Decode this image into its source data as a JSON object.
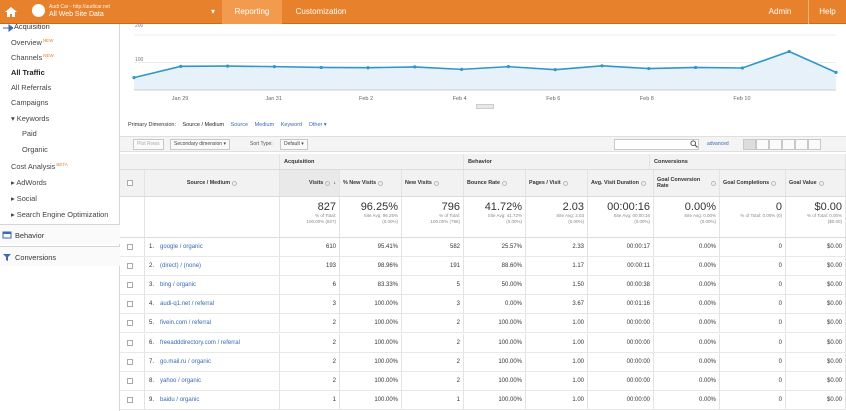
{
  "topbar": {
    "site_line1": "Audi Car - http://audicar.net",
    "site_line2": "All Web Site Data",
    "tab_reporting": "Reporting",
    "tab_customization": "Customization",
    "admin": "Admin",
    "help": "Help"
  },
  "sidebar": {
    "acquisition": "Acquisition",
    "overview": "Overview",
    "overview_badge": "NEW",
    "channels": "Channels",
    "channels_badge": "NEW",
    "all_traffic": "All Traffic",
    "all_referrals": "All Referrals",
    "campaigns": "Campaigns",
    "keywords": "▾ Keywords",
    "paid": "Paid",
    "organic": "Organic",
    "cost_analysis": "Cost Analysis",
    "cost_badge": "BETA",
    "adwords": "▸ AdWords",
    "social": "▸ Social",
    "seo": "▸ Search Engine Optimization",
    "behavior": "Behavior",
    "conversions": "Conversions"
  },
  "chart_data": {
    "type": "area",
    "y_ticks": [
      "200",
      "100"
    ],
    "ylim": [
      0,
      240
    ],
    "x_tick_labels": [
      "Jan 29",
      "Jan 31",
      "Feb 2",
      "Feb 4",
      "Feb 6",
      "Feb 8",
      "Feb 10"
    ],
    "x": [
      "Jan 28",
      "Jan 29",
      "Jan 30",
      "Jan 31",
      "Feb 1",
      "Feb 2",
      "Feb 3",
      "Feb 4",
      "Feb 5",
      "Feb 6",
      "Feb 7",
      "Feb 8",
      "Feb 9",
      "Feb 10",
      "Feb 11",
      "Feb 12"
    ],
    "series": [
      {
        "values": [
          45,
          86,
          87,
          85,
          82,
          81,
          84,
          75,
          85,
          74,
          88,
          78,
          82,
          80,
          140,
          64
        ]
      }
    ],
    "colors": {
      "line": "#3296c8",
      "fill": "#e6f1fa"
    }
  },
  "dimensions": {
    "label": "Primary Dimension:",
    "selected": "Source / Medium",
    "options": [
      "Source",
      "Medium",
      "Keyword"
    ],
    "other": "Other ▾"
  },
  "toolbar": {
    "plot_rows": "Plot Rows",
    "secondary": "Secondary dimension ▾",
    "sort_label": "Sort Type:",
    "sort_value": "Default ▾",
    "advanced": "advanced"
  },
  "table": {
    "groups": {
      "acquisition": "Acquisition",
      "behavior": "Behavior",
      "conversions": "Conversions"
    },
    "source_header": "Source / Medium",
    "columns": [
      "Visits",
      "% New Visits",
      "New Visits",
      "Bounce Rate",
      "Pages / Visit",
      "Avg. Visit Duration",
      "Goal Conversion Rate",
      "Goal Completions",
      "Goal Value"
    ],
    "totals": [
      {
        "big": "827",
        "sub": "% of Total:\n100.00% (827)"
      },
      {
        "big": "96.25%",
        "sub": "Site Avg: 96.25%\n(0.00%)"
      },
      {
        "big": "796",
        "sub": "% of Total:\n100.00% (796)"
      },
      {
        "big": "41.72%",
        "sub": "Site Avg: 41.72%\n(0.00%)"
      },
      {
        "big": "2.03",
        "sub": "Site Avg: 2.03\n(0.00%)"
      },
      {
        "big": "00:00:16",
        "sub": "Site Avg: 00:00:16\n(0.00%)"
      },
      {
        "big": "0.00%",
        "sub": "Site Avg: 0.00%\n(0.00%)"
      },
      {
        "big": "0",
        "sub": "% of Total: 0.00% (0)"
      },
      {
        "big": "$0.00",
        "sub": "% of Total: 0.00%\n($0.00)"
      }
    ],
    "rows": [
      {
        "idx": "1.",
        "source": "google / organic",
        "v": [
          "610",
          "95.41%",
          "582",
          "25.57%",
          "2.33",
          "00:00:17",
          "0.00%",
          "0",
          "$0.00"
        ]
      },
      {
        "idx": "2.",
        "source": "(direct) / (none)",
        "v": [
          "193",
          "98.96%",
          "191",
          "88.60%",
          "1.17",
          "00:00:11",
          "0.00%",
          "0",
          "$0.00"
        ]
      },
      {
        "idx": "3.",
        "source": "bing / organic",
        "v": [
          "6",
          "83.33%",
          "5",
          "50.00%",
          "1.50",
          "00:00:38",
          "0.00%",
          "0",
          "$0.00"
        ]
      },
      {
        "idx": "4.",
        "source": "audi-q1.net / referral",
        "v": [
          "3",
          "100.00%",
          "3",
          "0.00%",
          "3.67",
          "00:01:16",
          "0.00%",
          "0",
          "$0.00"
        ]
      },
      {
        "idx": "5.",
        "source": "fivein.com / referral",
        "v": [
          "2",
          "100.00%",
          "2",
          "100.00%",
          "1.00",
          "00:00:00",
          "0.00%",
          "0",
          "$0.00"
        ]
      },
      {
        "idx": "6.",
        "source": "freeadddirectory.com / referral",
        "v": [
          "2",
          "100.00%",
          "2",
          "100.00%",
          "1.00",
          "00:00:00",
          "0.00%",
          "0",
          "$0.00"
        ]
      },
      {
        "idx": "7.",
        "source": "go.mail.ru / organic",
        "v": [
          "2",
          "100.00%",
          "2",
          "100.00%",
          "1.00",
          "00:00:00",
          "0.00%",
          "0",
          "$0.00"
        ]
      },
      {
        "idx": "8.",
        "source": "yahoo / organic",
        "v": [
          "2",
          "100.00%",
          "2",
          "100.00%",
          "1.00",
          "00:00:00",
          "0.00%",
          "0",
          "$0.00"
        ]
      },
      {
        "idx": "9.",
        "source": "baidu / organic",
        "v": [
          "1",
          "100.00%",
          "1",
          "100.00%",
          "1.00",
          "00:00:00",
          "0.00%",
          "0",
          "$0.00"
        ]
      }
    ]
  }
}
